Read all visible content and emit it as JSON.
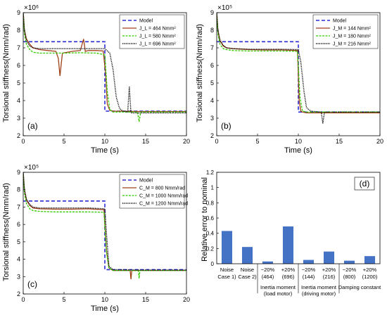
{
  "colors": {
    "model": "#2b2bd6",
    "low": "#a0401a",
    "mid": "#33cc00",
    "high": "#000000",
    "bar": "#4472c4"
  },
  "chart_data": [
    {
      "type": "line",
      "panel_label": "(a)",
      "xlabel": "Time (s)",
      "ylabel": "Torsional stiffness(Nmm/rad)",
      "exponent_label": "×10⁶",
      "xlim": [
        0,
        20
      ],
      "ylim": [
        2,
        9
      ],
      "xticks": [
        "0",
        "5",
        "10",
        "15",
        "20"
      ],
      "yticks": [
        "2",
        "3",
        "4",
        "5",
        "6",
        "7",
        "8",
        "9"
      ],
      "legend_position": "top-right",
      "grid": false,
      "series": [
        {
          "name": "Model",
          "style": "model",
          "x": [
            0,
            10,
            10,
            20
          ],
          "y": [
            7.35,
            7.35,
            3.4,
            3.4
          ]
        },
        {
          "name": "J_L = 464 Nmm²",
          "style": "low",
          "x": [
            0,
            0.15,
            0.4,
            0.8,
            1.2,
            2,
            3,
            4,
            4.3,
            4.5,
            4.8,
            6,
            7,
            7.4,
            7.6,
            8,
            9,
            9.8,
            10.1,
            10.3,
            10.6,
            11,
            14,
            20
          ],
          "y": [
            9.0,
            8.0,
            7.5,
            7.2,
            7.0,
            6.9,
            6.85,
            6.8,
            6.4,
            5.4,
            6.7,
            6.8,
            6.85,
            7.5,
            6.8,
            6.85,
            6.85,
            6.82,
            5.5,
            3.8,
            3.45,
            3.4,
            3.38,
            3.38
          ]
        },
        {
          "name": "J_L = 580 Nmm²",
          "style": "mid",
          "x": [
            0,
            0.15,
            0.4,
            0.8,
            1.2,
            2,
            3,
            5,
            7,
            9,
            10.0,
            10.3,
            10.6,
            11,
            14,
            14.2,
            14.4,
            20
          ],
          "y": [
            8.9,
            7.8,
            7.2,
            6.9,
            6.75,
            6.7,
            6.7,
            6.7,
            6.72,
            6.7,
            6.6,
            4.5,
            3.5,
            3.35,
            3.35,
            2.8,
            3.35,
            3.35
          ]
        },
        {
          "name": "J_L = 696 Nmm²",
          "style": "high",
          "x": [
            0,
            0.15,
            0.4,
            0.8,
            1.2,
            2,
            4,
            6,
            8,
            10,
            10.6,
            11,
            11.4,
            11.8,
            12.2,
            12.8,
            13,
            13.2,
            14,
            20
          ],
          "y": [
            9.0,
            8.0,
            7.4,
            7.1,
            7.0,
            6.95,
            6.95,
            6.95,
            6.95,
            6.95,
            6.7,
            5.8,
            4.2,
            3.55,
            3.4,
            3.35,
            4.8,
            3.3,
            3.3,
            3.3
          ]
        }
      ]
    },
    {
      "type": "line",
      "panel_label": "(b)",
      "xlabel": "Time (s)",
      "ylabel": "Torsional stiffness(Nmm/rad)",
      "exponent_label": "×10⁵",
      "xlim": [
        0,
        20
      ],
      "ylim": [
        2,
        9
      ],
      "xticks": [
        "0",
        "5",
        "10",
        "15",
        "20"
      ],
      "yticks": [
        "2",
        "3",
        "4",
        "5",
        "6",
        "7",
        "8",
        "9"
      ],
      "legend_position": "top-right",
      "grid": false,
      "series": [
        {
          "name": "Model",
          "style": "model",
          "x": [
            0,
            10,
            10,
            20
          ],
          "y": [
            7.35,
            7.35,
            3.35,
            3.35
          ]
        },
        {
          "name": "J_M = 144 Nmm²",
          "style": "low",
          "x": [
            0,
            0.15,
            0.4,
            0.8,
            1.2,
            2,
            4,
            6,
            8,
            9.9,
            10.1,
            10.3,
            10.5,
            11,
            20
          ],
          "y": [
            9.0,
            8.0,
            7.4,
            7.1,
            7.0,
            6.95,
            6.9,
            6.88,
            6.88,
            6.85,
            4.0,
            3.4,
            3.35,
            3.3,
            3.3
          ]
        },
        {
          "name": "J_M = 180 Nmm²",
          "style": "mid",
          "x": [
            0,
            0.15,
            0.4,
            0.8,
            1.2,
            2,
            4,
            6,
            8,
            9.9,
            10.2,
            10.5,
            11,
            20
          ],
          "y": [
            8.9,
            7.8,
            7.2,
            6.95,
            6.9,
            6.85,
            6.82,
            6.82,
            6.82,
            6.8,
            4.2,
            3.4,
            3.35,
            3.35
          ]
        },
        {
          "name": "J_M = 216 Nmm²",
          "style": "high",
          "x": [
            0,
            0.15,
            0.4,
            0.8,
            1.2,
            2,
            4,
            6,
            8,
            10,
            10.3,
            10.7,
            11,
            11.5,
            12.8,
            13,
            13.2,
            20
          ],
          "y": [
            9.0,
            8.0,
            7.45,
            7.15,
            7.0,
            6.95,
            6.92,
            6.92,
            6.92,
            6.9,
            6.2,
            4.5,
            3.6,
            3.4,
            3.35,
            2.7,
            3.35,
            3.35
          ]
        }
      ]
    },
    {
      "type": "line",
      "panel_label": "(c)",
      "xlabel": "Time (s)",
      "ylabel": "Torsional stiffness(Nmm/rad)",
      "exponent_label": "×10⁵",
      "xlim": [
        0,
        20
      ],
      "ylim": [
        2,
        9
      ],
      "xticks": [
        "0",
        "5",
        "10",
        "15",
        "20"
      ],
      "yticks": [
        "2",
        "3",
        "4",
        "5",
        "6",
        "7",
        "8",
        "9"
      ],
      "legend_position": "top-right",
      "grid": false,
      "series": [
        {
          "name": "Model",
          "style": "model",
          "x": [
            0,
            10,
            10,
            20
          ],
          "y": [
            7.35,
            7.35,
            3.4,
            3.4
          ]
        },
        {
          "name": "C_M = 800 Nmm/rad",
          "style": "low",
          "x": [
            0,
            0.15,
            0.4,
            0.8,
            1.2,
            2,
            4,
            6,
            8,
            9.9,
            10.2,
            10.5,
            11,
            13.1,
            13.2,
            13.3,
            20
          ],
          "y": [
            9.0,
            8.0,
            7.4,
            7.1,
            6.95,
            6.9,
            6.88,
            6.88,
            6.9,
            6.85,
            4.5,
            3.5,
            3.35,
            3.35,
            2.85,
            3.35,
            3.35
          ]
        },
        {
          "name": "C_M = 1000 Nmm/rad",
          "style": "mid",
          "x": [
            0,
            0.15,
            0.4,
            0.8,
            1.2,
            2,
            4,
            6,
            8,
            9.9,
            10.2,
            10.5,
            11,
            14.1,
            14.2,
            14.3,
            20
          ],
          "y": [
            8.9,
            7.8,
            7.2,
            6.9,
            6.8,
            6.75,
            6.72,
            6.72,
            6.72,
            6.7,
            4.4,
            3.5,
            3.35,
            3.35,
            2.9,
            3.35,
            3.35
          ]
        },
        {
          "name": "C_M = 1200 Nmm/rad",
          "style": "high",
          "x": [
            0,
            0.15,
            0.4,
            0.8,
            1.2,
            2,
            4,
            6,
            8,
            10,
            10.2,
            10.5,
            11,
            14,
            20
          ],
          "y": [
            9.0,
            8.0,
            7.45,
            7.15,
            7.0,
            6.95,
            6.95,
            6.95,
            6.95,
            6.9,
            5.5,
            3.6,
            3.4,
            3.38,
            3.38
          ]
        }
      ]
    },
    {
      "type": "bar",
      "panel_label": "(d)",
      "ylabel": "Relative error to nominal",
      "ylim": [
        0,
        1.2
      ],
      "yticks": [
        "0",
        "0.2",
        "0.4",
        "0.6",
        "0.8",
        "1",
        "1.2"
      ],
      "grid": false,
      "categories": [
        [
          "Noise",
          "Case 1)"
        ],
        [
          "Noise",
          "Case 2)"
        ],
        [
          "−20%",
          "(464)"
        ],
        [
          "+20%",
          "(696)"
        ],
        [
          "−20%",
          "(144)"
        ],
        [
          "+20%",
          "(216)"
        ],
        [
          "−20%",
          "(800)"
        ],
        [
          "+20%",
          "(1200)"
        ]
      ],
      "values": [
        0.43,
        0.22,
        0.03,
        0.49,
        0.05,
        0.16,
        0.04,
        0.1
      ],
      "groups": [
        {
          "lines": [
            "Inertia moment",
            "(load motor)"
          ],
          "from": 2,
          "to": 3
        },
        {
          "lines": [
            "Inertia moment",
            "(driving motor)"
          ],
          "from": 4,
          "to": 5
        },
        {
          "lines": [
            "Damping constant"
          ],
          "from": 6,
          "to": 7
        }
      ]
    }
  ]
}
